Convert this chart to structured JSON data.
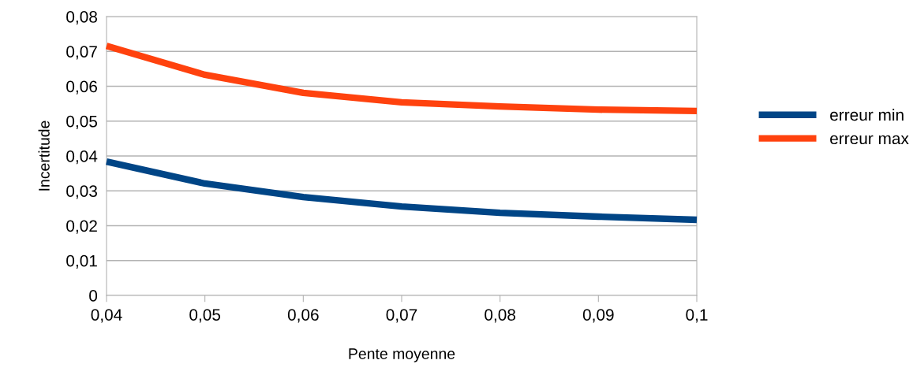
{
  "chart_data": {
    "type": "line",
    "xlabel": "Pente moyenne",
    "ylabel": "Incertitude",
    "x": [
      0.04,
      0.05,
      0.06,
      0.07,
      0.08,
      0.09,
      0.1
    ],
    "series": [
      {
        "name": "erreur min",
        "color": "#004586",
        "values": [
          0.0384,
          0.0321,
          0.0282,
          0.0255,
          0.0237,
          0.0226,
          0.0217
        ]
      },
      {
        "name": "erreur max",
        "color": "#ff420e",
        "values": [
          0.0716,
          0.0633,
          0.0581,
          0.0554,
          0.0542,
          0.0533,
          0.0529
        ]
      }
    ],
    "xlim": [
      0.04,
      0.1
    ],
    "xticks": [
      {
        "value": 0.04,
        "label": "0,04"
      },
      {
        "value": 0.05,
        "label": "0,05"
      },
      {
        "value": 0.06,
        "label": "0,06"
      },
      {
        "value": 0.07,
        "label": "0,07"
      },
      {
        "value": 0.08,
        "label": "0,08"
      },
      {
        "value": 0.09,
        "label": "0,09"
      },
      {
        "value": 0.1,
        "label": "0,1"
      }
    ],
    "ylim": [
      0,
      0.08
    ],
    "yticks": [
      0,
      {
        "value": 0.01,
        "label": "0,01"
      },
      {
        "value": 0.02,
        "label": "0,02"
      },
      {
        "value": 0.03,
        "label": "0,03"
      },
      {
        "value": 0.04,
        "label": "0,04"
      },
      {
        "value": 0.05,
        "label": "0,05"
      },
      {
        "value": 0.06,
        "label": "0,06"
      },
      {
        "value": 0.07,
        "label": "0,07"
      },
      {
        "value": 0.08,
        "label": "0,08"
      }
    ],
    "grid": "y",
    "legend": "right",
    "marker": "none",
    "line_style": "solid"
  }
}
